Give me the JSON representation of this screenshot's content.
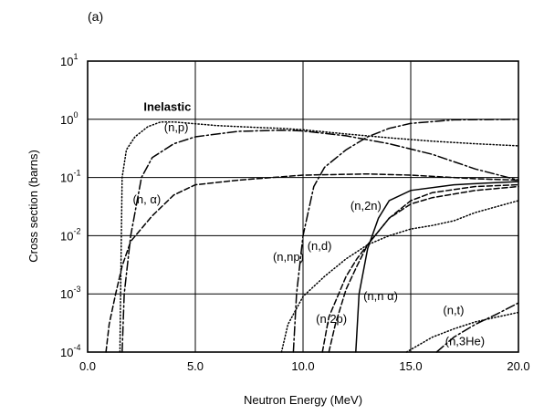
{
  "panel_label": "(a)",
  "chart_data": {
    "type": "line",
    "xlabel": "Neutron Energy (MeV)",
    "ylabel": "Cross section (barns)",
    "xlim": [
      0,
      20
    ],
    "ylim": [
      0.0001,
      10
    ],
    "yscale": "log",
    "grid": true,
    "x_ticks": [
      {
        "value": 0,
        "label": "0.0"
      },
      {
        "value": 5,
        "label": "5.0"
      },
      {
        "value": 10,
        "label": "10.0"
      },
      {
        "value": 15,
        "label": "15.0"
      },
      {
        "value": 20,
        "label": "20.0"
      }
    ],
    "y_ticks": [
      {
        "value": 0.0001,
        "base": "10",
        "exp": "-4"
      },
      {
        "value": 0.001,
        "base": "10",
        "exp": "-3"
      },
      {
        "value": 0.01,
        "base": "10",
        "exp": "-2"
      },
      {
        "value": 0.1,
        "base": "10",
        "exp": "-1"
      },
      {
        "value": 1,
        "base": "10",
        "exp": "0"
      },
      {
        "value": 10,
        "base": "10",
        "exp": "1"
      }
    ],
    "series": [
      {
        "name": "Inelastic",
        "style": "dotted",
        "points": [
          [
            1.5,
            0.0001
          ],
          [
            1.52,
            0.0005
          ],
          [
            1.6,
            0.1
          ],
          [
            1.8,
            0.3
          ],
          [
            2.2,
            0.5
          ],
          [
            2.8,
            0.75
          ],
          [
            3.4,
            0.9
          ],
          [
            4,
            0.9
          ],
          [
            6,
            0.78
          ],
          [
            8,
            0.72
          ],
          [
            9,
            0.7
          ],
          [
            10,
            0.66
          ],
          [
            12,
            0.56
          ],
          [
            14,
            0.48
          ],
          [
            16,
            0.42
          ],
          [
            18,
            0.38
          ],
          [
            20,
            0.35
          ]
        ]
      },
      {
        "name": "(n,p)",
        "style": "dash-dot",
        "points": [
          [
            1.6,
            0.0001
          ],
          [
            1.7,
            0.001
          ],
          [
            2,
            0.01
          ],
          [
            2.5,
            0.1
          ],
          [
            3,
            0.22
          ],
          [
            4,
            0.38
          ],
          [
            5,
            0.5
          ],
          [
            7,
            0.62
          ],
          [
            9,
            0.65
          ],
          [
            10,
            0.63
          ],
          [
            12,
            0.52
          ],
          [
            14,
            0.38
          ],
          [
            16,
            0.25
          ],
          [
            18,
            0.14
          ],
          [
            20,
            0.09
          ]
        ]
      },
      {
        "name": "(n,α)",
        "style": "dashed",
        "points": [
          [
            0.85,
            0.0001
          ],
          [
            1,
            0.0003
          ],
          [
            1.3,
            0.001
          ],
          [
            1.6,
            0.003
          ],
          [
            2,
            0.008
          ],
          [
            3,
            0.022
          ],
          [
            4,
            0.05
          ],
          [
            5,
            0.075
          ],
          [
            7,
            0.09
          ],
          [
            10,
            0.11
          ],
          [
            13,
            0.115
          ],
          [
            15,
            0.11
          ],
          [
            18,
            0.095
          ],
          [
            20,
            0.09
          ]
        ]
      },
      {
        "name": "(n,2n)",
        "style": "dash-dot",
        "points": [
          [
            9.55,
            0.0001
          ],
          [
            9.7,
            0.001
          ],
          [
            10,
            0.01
          ],
          [
            10.5,
            0.07
          ],
          [
            11,
            0.15
          ],
          [
            12,
            0.3
          ],
          [
            13,
            0.5
          ],
          [
            14,
            0.7
          ],
          [
            15,
            0.85
          ],
          [
            17,
            0.98
          ],
          [
            20,
            1.0
          ]
        ]
      },
      {
        "name": "(n,np)",
        "style": "solid",
        "points": [
          [
            12.45,
            0.0001
          ],
          [
            12.6,
            0.001
          ],
          [
            13,
            0.006
          ],
          [
            13.5,
            0.02
          ],
          [
            14,
            0.04
          ],
          [
            15,
            0.06
          ],
          [
            17,
            0.075
          ],
          [
            18.5,
            0.08
          ],
          [
            20,
            0.085
          ]
        ]
      },
      {
        "name": "(n,d)",
        "style": "dotted",
        "points": [
          [
            9,
            0.0001
          ],
          [
            9.3,
            0.0003
          ],
          [
            10,
            0.0009
          ],
          [
            11,
            0.002
          ],
          [
            12,
            0.004
          ],
          [
            13,
            0.007
          ],
          [
            14,
            0.01
          ],
          [
            15,
            0.013
          ],
          [
            16,
            0.015
          ],
          [
            17,
            0.018
          ],
          [
            18,
            0.025
          ],
          [
            20,
            0.04
          ]
        ]
      },
      {
        "name": "(n,2p)",
        "style": "dashed",
        "points": [
          [
            11.2,
            0.0001
          ],
          [
            11.5,
            0.0003
          ],
          [
            12,
            0.0012
          ],
          [
            12.5,
            0.003
          ],
          [
            13,
            0.007
          ],
          [
            14,
            0.02
          ],
          [
            15,
            0.04
          ],
          [
            16,
            0.055
          ],
          [
            18,
            0.07
          ],
          [
            20,
            0.075
          ]
        ]
      },
      {
        "name": "(n,nα)",
        "style": "dashed",
        "points": [
          [
            10.9,
            0.0001
          ],
          [
            11.2,
            0.0004
          ],
          [
            12,
            0.002
          ],
          [
            12.5,
            0.004
          ],
          [
            13,
            0.007
          ],
          [
            14,
            0.02
          ],
          [
            15,
            0.035
          ],
          [
            16,
            0.045
          ],
          [
            18,
            0.06
          ],
          [
            20,
            0.07
          ]
        ]
      },
      {
        "name": "(n,t)",
        "style": "dash-dot",
        "points": [
          [
            16.2,
            0.0001
          ],
          [
            17,
            0.00018
          ],
          [
            18,
            0.0003
          ],
          [
            19,
            0.00045
          ],
          [
            20,
            0.0007
          ]
        ]
      },
      {
        "name": "(n,3He)",
        "style": "dotted",
        "points": [
          [
            14.8,
            0.0001
          ],
          [
            16,
            0.00018
          ],
          [
            17,
            0.00025
          ],
          [
            18,
            0.00033
          ],
          [
            19,
            0.0004
          ],
          [
            20,
            0.00048
          ]
        ]
      }
    ],
    "annotations": [
      {
        "text": "Inelastic",
        "x": 2.6,
        "y": 1.4,
        "bold": true
      },
      {
        "text": "(n,p)",
        "x": 3.55,
        "y": 0.62
      },
      {
        "text": "(n, α)",
        "x": 2.1,
        "y": 0.036
      },
      {
        "text": "(n,2n)",
        "x": 12.2,
        "y": 0.028
      },
      {
        "text": "(n,np)",
        "x": 8.6,
        "y": 0.0037
      },
      {
        "text": "(n,d)",
        "x": 10.2,
        "y": 0.0057
      },
      {
        "text": "(n,2p)",
        "x": 10.6,
        "y": 0.00032
      },
      {
        "text": "(n,n α)",
        "x": 12.8,
        "y": 0.00078
      },
      {
        "text": "(n,t)",
        "x": 16.5,
        "y": 0.00045
      },
      {
        "text": "(n,3He)",
        "x": 16.6,
        "y": 0.00013
      }
    ]
  }
}
